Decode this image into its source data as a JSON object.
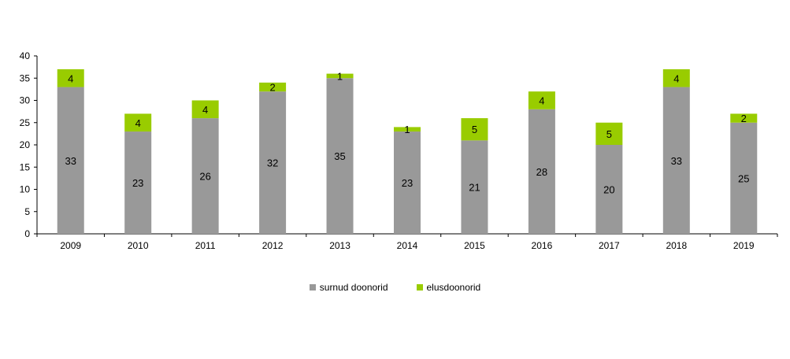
{
  "chart_data": {
    "type": "bar",
    "stacked": true,
    "categories": [
      "2009",
      "2010",
      "2011",
      "2012",
      "2013",
      "2014",
      "2015",
      "2016",
      "2017",
      "2018",
      "2019"
    ],
    "series": [
      {
        "name": "surnud doonorid",
        "color": "#999999",
        "values": [
          33,
          23,
          26,
          32,
          35,
          23,
          21,
          28,
          20,
          33,
          25
        ]
      },
      {
        "name": "elusdoonorid",
        "color": "#99cc00",
        "values": [
          4,
          4,
          4,
          2,
          1,
          1,
          5,
          4,
          5,
          4,
          2
        ]
      }
    ],
    "ylim": [
      0,
      40
    ],
    "yticks": [
      0,
      5,
      10,
      15,
      20,
      25,
      30,
      35,
      40
    ],
    "grid": false,
    "legend_position": "bottom"
  }
}
